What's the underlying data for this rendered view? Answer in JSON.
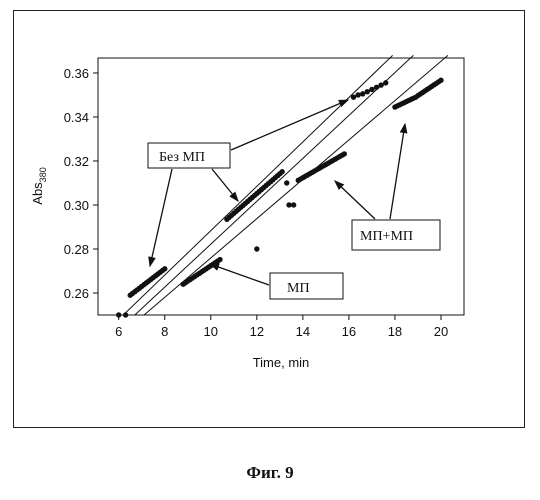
{
  "caption": "Фиг. 9",
  "chart_data": {
    "type": "scatter",
    "xlabel": "Time, min",
    "ylabel": "Abs",
    "ylabel_sub": "380",
    "xlim": [
      5.1,
      21
    ],
    "ylim": [
      0.25,
      0.3668
    ],
    "xticks": [
      6,
      8,
      10,
      12,
      14,
      16,
      18,
      20
    ],
    "xtick_labels": [
      "6",
      "8",
      "10",
      "12",
      "14",
      "16",
      "18",
      "20"
    ],
    "yticks": [
      0.26,
      0.28,
      0.3,
      0.32,
      0.34,
      0.36
    ],
    "ytick_labels": [
      "0.26",
      "0.28",
      "0.30",
      "0.32",
      "0.34",
      "0.36"
    ],
    "grid": false,
    "annotations": [
      {
        "text": "Без МП"
      },
      {
        "text": "МП+МП"
      },
      {
        "text": "МП"
      }
    ],
    "fit_lines": [
      {
        "x1": 6.2,
        "y1": 0.25,
        "x2": 17.9,
        "y2": 0.368
      },
      {
        "x1": 6.7,
        "y1": 0.25,
        "x2": 18.8,
        "y2": 0.368
      },
      {
        "x1": 7.1,
        "y1": 0.25,
        "x2": 20.3,
        "y2": 0.368
      }
    ],
    "series": [
      {
        "points": [
          [
            6.5,
            0.259
          ],
          [
            6.6,
            0.2598
          ],
          [
            6.7,
            0.2606
          ],
          [
            6.8,
            0.2614
          ],
          [
            6.9,
            0.2622
          ],
          [
            7.0,
            0.263
          ],
          [
            7.1,
            0.2638
          ],
          [
            7.2,
            0.2646
          ],
          [
            7.3,
            0.2654
          ],
          [
            7.4,
            0.2662
          ],
          [
            7.5,
            0.267
          ],
          [
            7.6,
            0.2678
          ],
          [
            7.7,
            0.2686
          ],
          [
            7.8,
            0.2694
          ],
          [
            7.9,
            0.2702
          ],
          [
            8.0,
            0.271
          ],
          [
            10.7,
            0.2935
          ],
          [
            10.8,
            0.2944
          ],
          [
            10.9,
            0.2953
          ],
          [
            11.0,
            0.2962
          ],
          [
            11.1,
            0.2971
          ],
          [
            11.2,
            0.298
          ],
          [
            11.3,
            0.2989
          ],
          [
            11.4,
            0.2998
          ],
          [
            11.5,
            0.3007
          ],
          [
            11.6,
            0.3016
          ],
          [
            11.7,
            0.3025
          ],
          [
            11.8,
            0.3034
          ],
          [
            11.9,
            0.3043
          ],
          [
            12.0,
            0.3052
          ],
          [
            12.1,
            0.3061
          ],
          [
            12.2,
            0.307
          ],
          [
            12.3,
            0.3079
          ],
          [
            12.4,
            0.3088
          ],
          [
            12.5,
            0.3097
          ],
          [
            12.6,
            0.3106
          ],
          [
            12.7,
            0.3115
          ],
          [
            12.8,
            0.3124
          ],
          [
            12.9,
            0.3133
          ],
          [
            13.0,
            0.3142
          ],
          [
            13.1,
            0.3151
          ],
          [
            16.2,
            0.349
          ],
          [
            16.4,
            0.35
          ],
          [
            16.6,
            0.3505
          ],
          [
            16.8,
            0.3515
          ],
          [
            17.0,
            0.3525
          ],
          [
            17.2,
            0.3535
          ],
          [
            17.4,
            0.3545
          ],
          [
            17.6,
            0.3555
          ]
        ]
      },
      {
        "points": [
          [
            6.0,
            0.25
          ],
          [
            6.3,
            0.25
          ],
          [
            8.8,
            0.264
          ],
          [
            8.9,
            0.2647
          ],
          [
            9.0,
            0.2654
          ],
          [
            9.1,
            0.2661
          ],
          [
            9.2,
            0.2668
          ],
          [
            9.3,
            0.2675
          ],
          [
            9.4,
            0.2682
          ],
          [
            9.5,
            0.2689
          ],
          [
            9.6,
            0.2696
          ],
          [
            9.7,
            0.2703
          ],
          [
            9.8,
            0.271
          ],
          [
            9.9,
            0.2717
          ],
          [
            10.0,
            0.2724
          ],
          [
            10.1,
            0.2731
          ],
          [
            10.2,
            0.2738
          ],
          [
            10.3,
            0.2745
          ],
          [
            10.4,
            0.2752
          ],
          [
            12.0,
            0.28
          ],
          [
            13.3,
            0.31
          ],
          [
            13.4,
            0.3
          ],
          [
            13.6,
            0.3
          ],
          [
            13.8,
            0.3112
          ],
          [
            13.9,
            0.3118
          ],
          [
            14.0,
            0.3124
          ],
          [
            14.1,
            0.313
          ],
          [
            14.2,
            0.3136
          ],
          [
            14.3,
            0.3142
          ],
          [
            14.4,
            0.3148
          ],
          [
            14.5,
            0.3154
          ],
          [
            14.6,
            0.316
          ],
          [
            14.7,
            0.3166
          ],
          [
            14.8,
            0.3172
          ],
          [
            14.9,
            0.3178
          ],
          [
            15.0,
            0.3184
          ],
          [
            15.1,
            0.319
          ],
          [
            15.2,
            0.3196
          ],
          [
            15.3,
            0.3202
          ],
          [
            15.4,
            0.3208
          ],
          [
            15.5,
            0.3214
          ],
          [
            15.6,
            0.322
          ],
          [
            15.7,
            0.3226
          ],
          [
            15.8,
            0.3232
          ]
        ]
      },
      {
        "points": [
          [
            18.0,
            0.3445
          ],
          [
            18.1,
            0.345
          ],
          [
            18.2,
            0.3455
          ],
          [
            18.3,
            0.346
          ],
          [
            18.4,
            0.3465
          ],
          [
            18.5,
            0.347
          ],
          [
            18.6,
            0.3475
          ],
          [
            18.7,
            0.348
          ],
          [
            18.8,
            0.3485
          ],
          [
            18.9,
            0.349
          ],
          [
            19.0,
            0.3497
          ],
          [
            19.1,
            0.3504
          ],
          [
            19.2,
            0.3511
          ],
          [
            19.3,
            0.3518
          ],
          [
            19.4,
            0.3525
          ],
          [
            19.5,
            0.3532
          ],
          [
            19.6,
            0.3539
          ],
          [
            19.7,
            0.3546
          ],
          [
            19.8,
            0.3553
          ],
          [
            19.9,
            0.356
          ],
          [
            20.0,
            0.3567
          ]
        ]
      }
    ]
  }
}
